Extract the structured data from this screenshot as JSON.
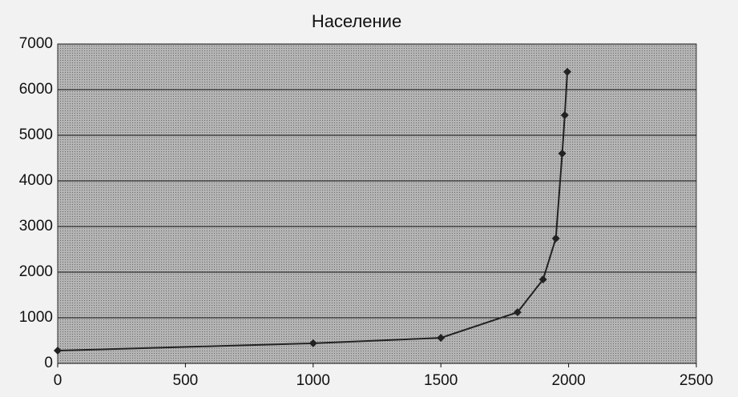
{
  "chart_data": {
    "type": "line",
    "title": "Население",
    "x": [
      0,
      1000,
      1500,
      1800,
      1900,
      1950,
      1975,
      1985,
      1995
    ],
    "series": [
      {
        "color": "#222222",
        "values": [
          280,
          440,
          560,
          1120,
          1840,
          2740,
          4600,
          5440,
          6390
        ]
      }
    ],
    "xlim": [
      0,
      2500
    ],
    "xticks": [
      0,
      500,
      1000,
      1500,
      2000,
      2500
    ],
    "ylim": [
      0,
      7000
    ],
    "yticks": [
      0,
      1000,
      2000,
      3000,
      4000,
      5000,
      6000,
      7000
    ],
    "grid": true
  }
}
